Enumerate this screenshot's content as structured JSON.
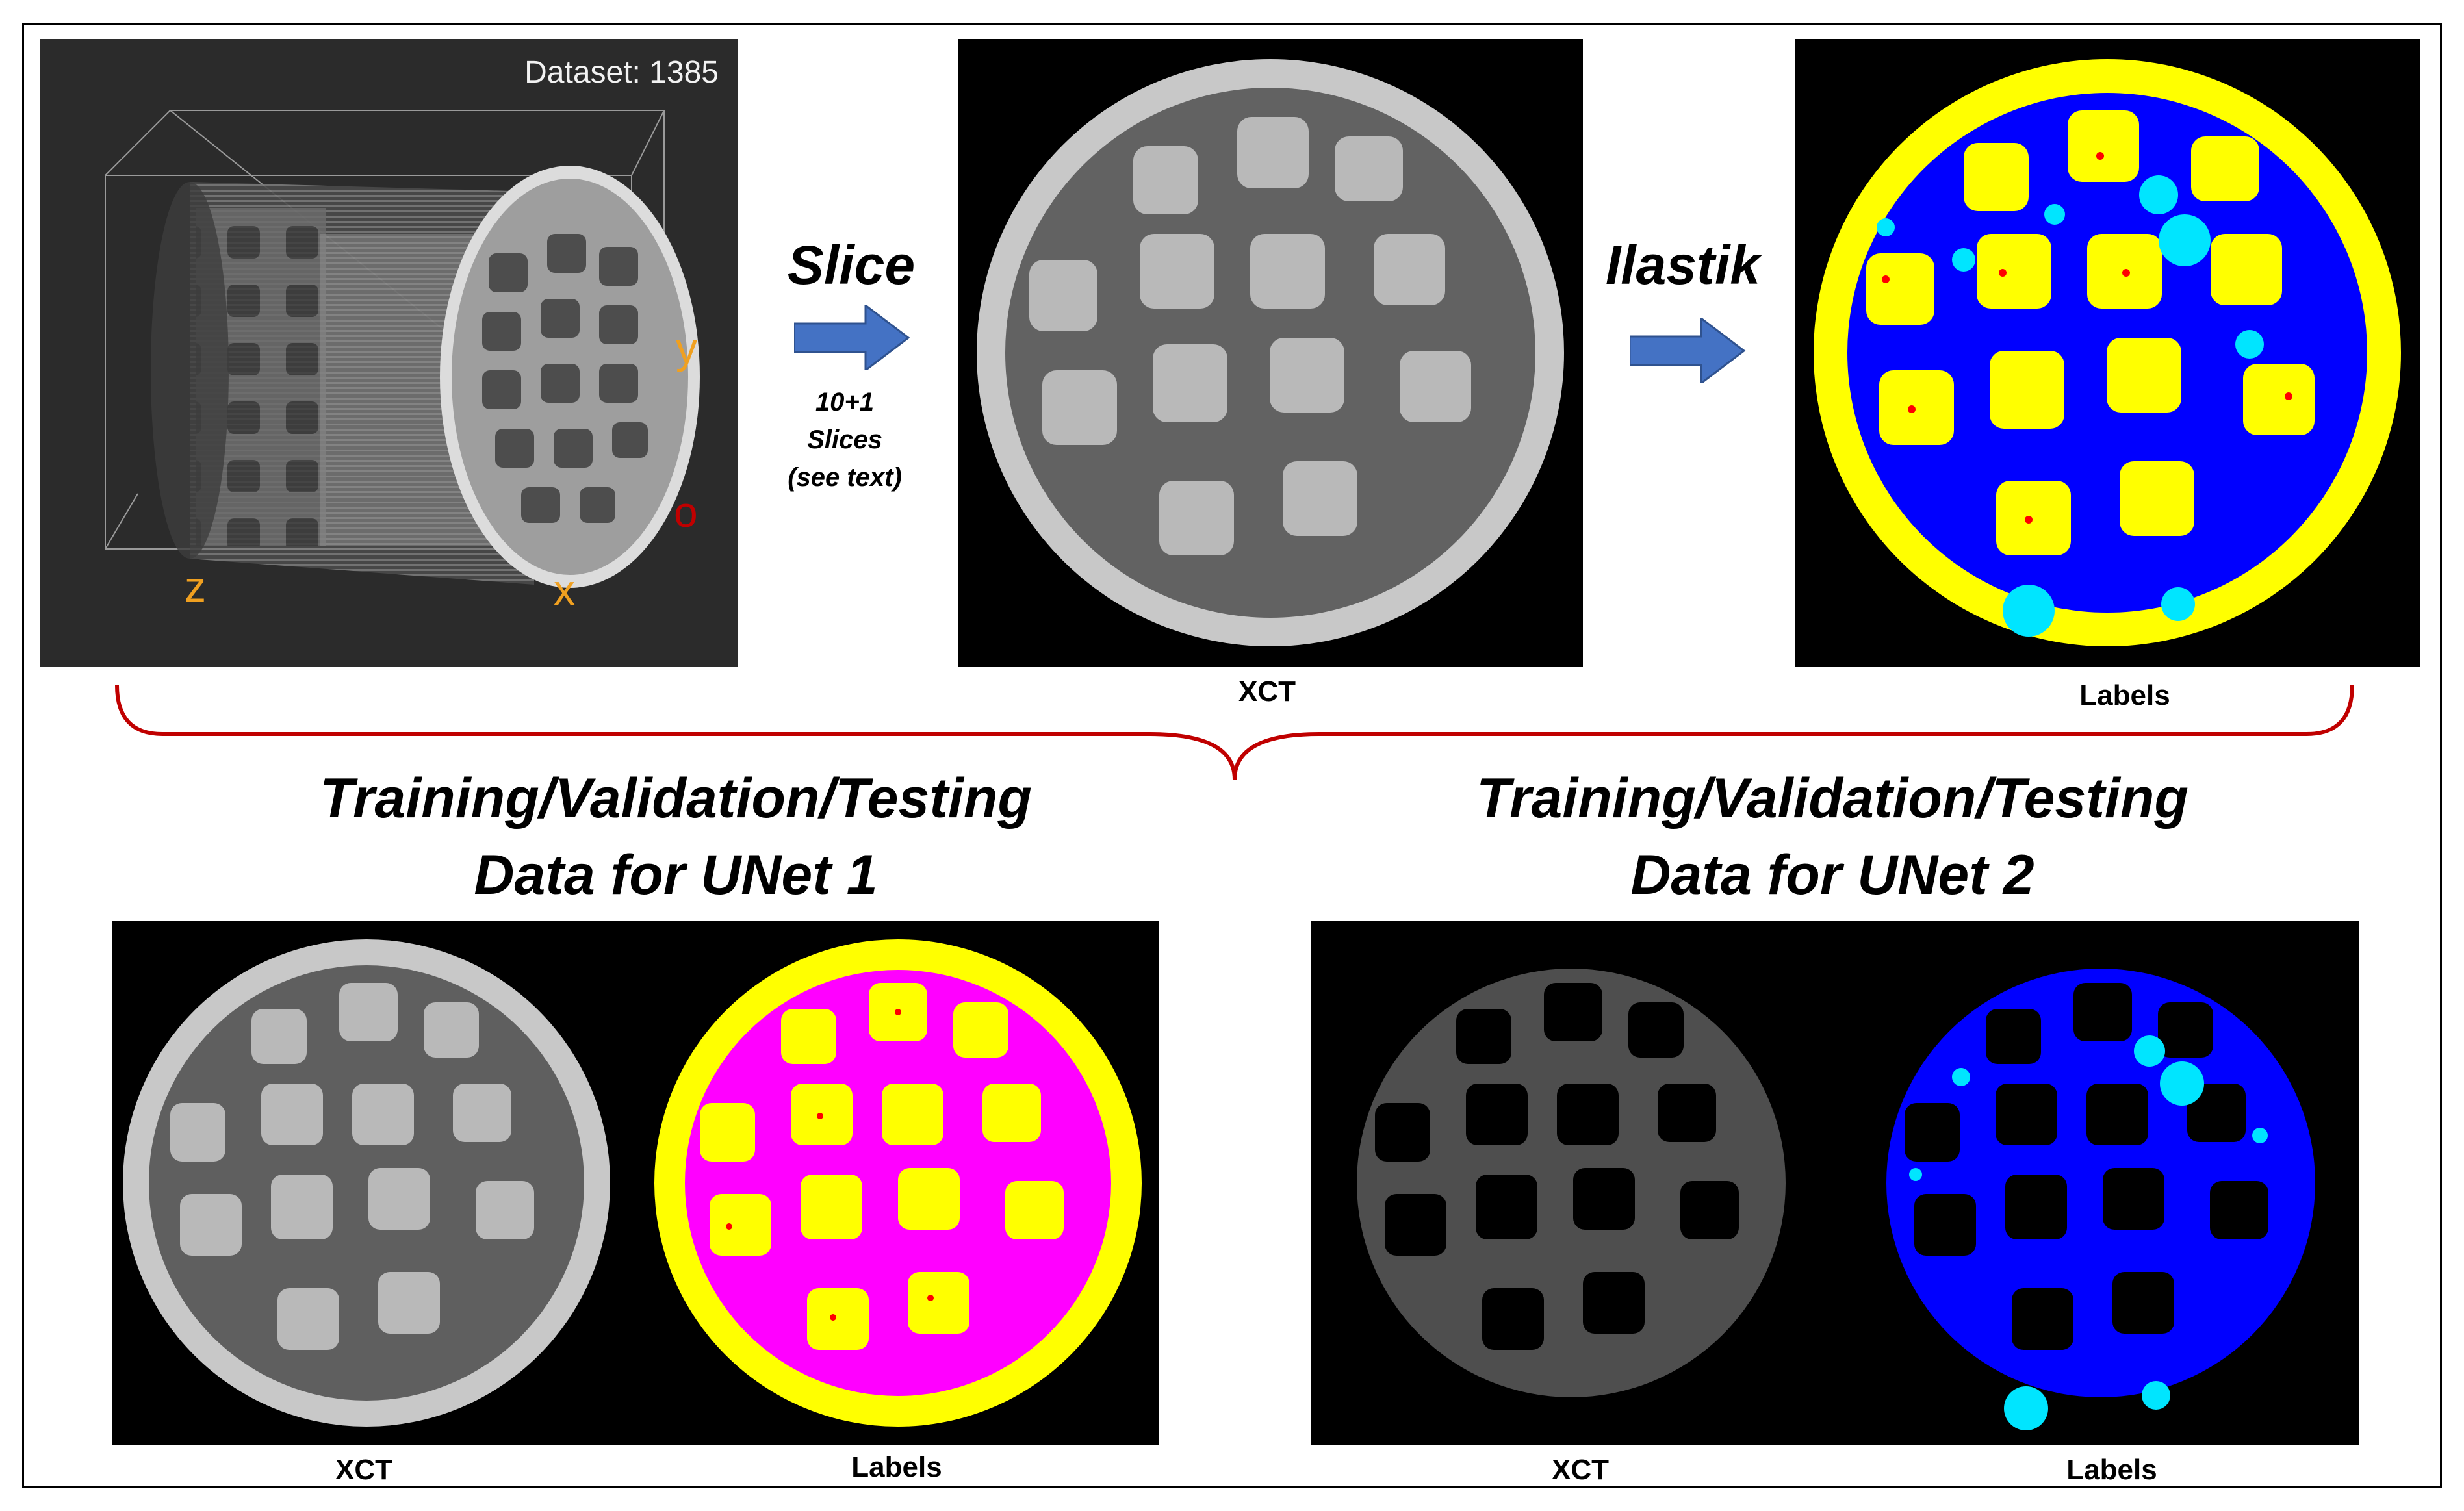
{
  "top_row": {
    "volume_panel": {
      "dataset_label": "Dataset: 1385",
      "axis_y": "y",
      "axis_z": "z",
      "axis_x": "x",
      "axis_origin": "o"
    },
    "slice_step": {
      "label": "Slice",
      "note_line1": "10+1",
      "note_line2": "Slices",
      "note_line3": "(see text)"
    },
    "xct_caption": "XCT",
    "ilastik_step": {
      "label": "Ilastik"
    },
    "labels_caption": "Labels"
  },
  "unet1": {
    "title_line1": "Training/Validation/Testing",
    "title_line2": "Data for UNet 1",
    "xct_caption": "XCT",
    "labels_caption": "Labels"
  },
  "unet2": {
    "title_line1": "Training/Validation/Testing",
    "title_line2": "Data for UNet 2",
    "xct_caption": "XCT",
    "labels_caption": "Labels"
  },
  "colors": {
    "arrow_blue": "#4472c4",
    "brace_red": "#c00000",
    "axis_orange": "#f0a020",
    "label_yellow": "#ffff00",
    "label_blue": "#0000ff",
    "label_cyan": "#00e5ff",
    "label_magenta": "#ff00ff",
    "label_red": "#ff0000"
  }
}
